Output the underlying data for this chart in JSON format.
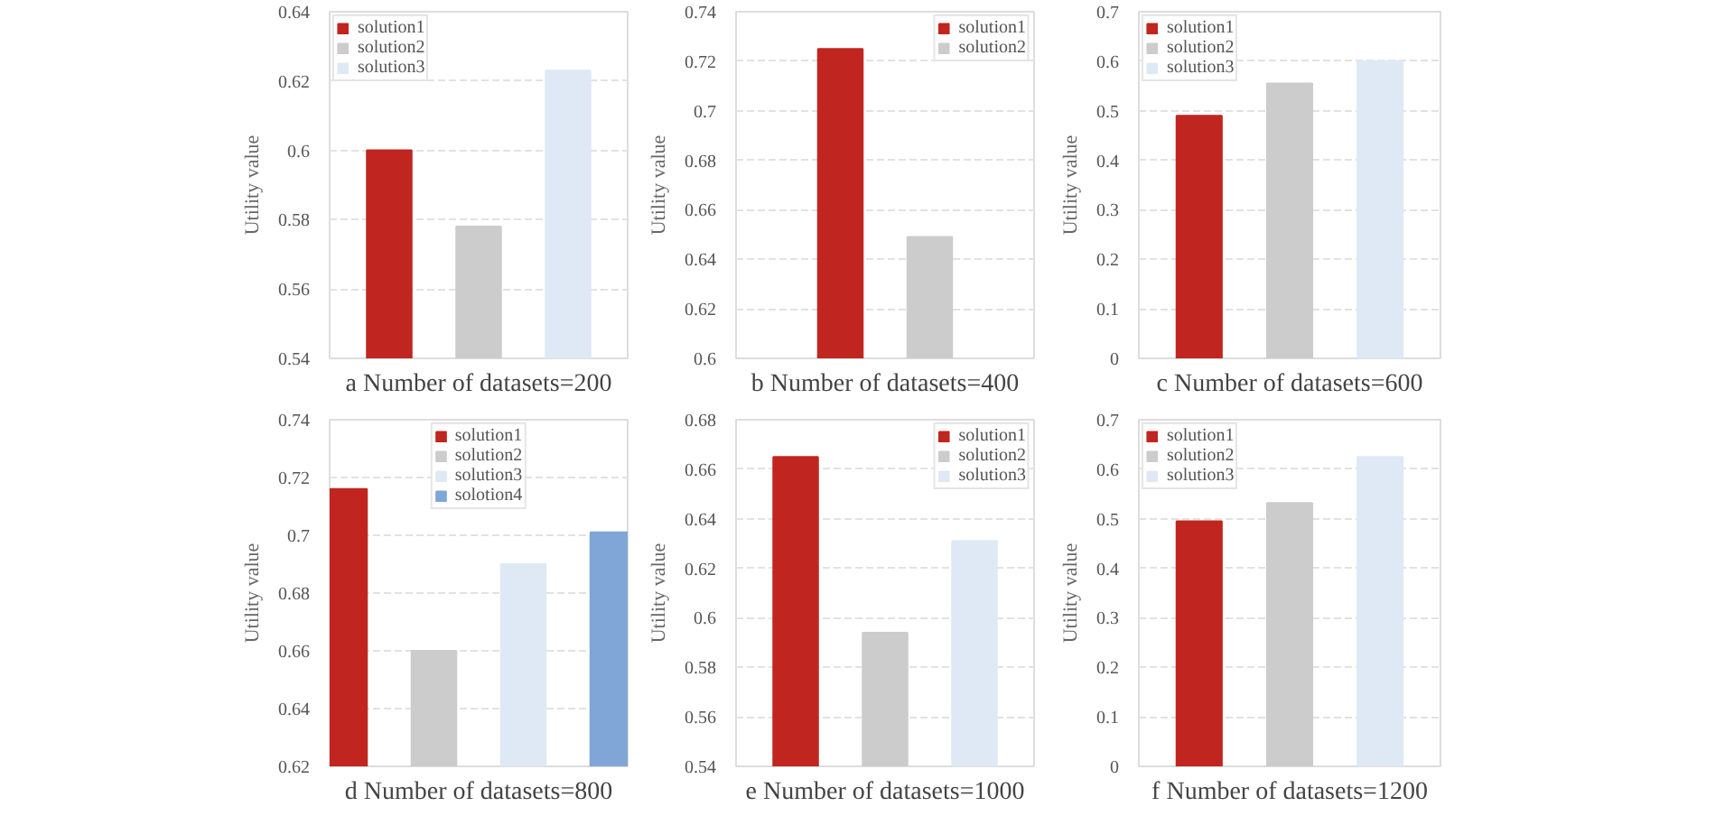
{
  "chart_data": [
    {
      "type": "bar",
      "title": "a Number of datasets=200",
      "ylabel": "Utility value",
      "categories": [
        null
      ],
      "ylim": [
        0.54,
        0.64
      ],
      "yticks": [
        0.54,
        0.56,
        0.58,
        0.6,
        0.62,
        0.64
      ],
      "grid": "y",
      "legend": "top left",
      "tick_labels": "y",
      "series": [
        {
          "name": "solution1",
          "color": "#c0261f",
          "values": [
            0.6
          ]
        },
        {
          "name": "solution2",
          "color": "#cccccc",
          "values": [
            0.578
          ]
        },
        {
          "name": "solution3",
          "color": "#dfe9f5",
          "values": [
            0.623
          ]
        }
      ]
    },
    {
      "type": "bar",
      "title": "b Number of datasets=400",
      "ylabel": "Utility value",
      "categories": [
        null
      ],
      "ylim": [
        0.6,
        0.74
      ],
      "yticks": [
        0.6,
        0.62,
        0.64,
        0.66,
        0.68,
        0.7,
        0.72,
        0.74
      ],
      "grid": "y",
      "legend": "top right",
      "tick_labels": "y",
      "series": [
        {
          "name": "solution1",
          "color": "#c0261f",
          "values": [
            0.725
          ]
        },
        {
          "name": "solution2",
          "color": "#cccccc",
          "values": [
            0.649
          ]
        }
      ]
    },
    {
      "type": "bar",
      "title": "c Number of datasets=600",
      "ylabel": "Utility value",
      "categories": [
        null
      ],
      "ylim": [
        0,
        0.7
      ],
      "yticks": [
        0,
        0.1,
        0.2,
        0.3,
        0.4,
        0.5,
        0.6,
        0.7
      ],
      "grid": "y",
      "legend": "top left",
      "tick_labels": "y",
      "series": [
        {
          "name": "solution1",
          "color": "#c0261f",
          "values": [
            0.49
          ]
        },
        {
          "name": "solution2",
          "color": "#cccccc",
          "values": [
            0.555
          ]
        },
        {
          "name": "solution3",
          "color": "#dfe9f5",
          "values": [
            0.6
          ]
        }
      ]
    },
    {
      "type": "bar",
      "title": "d Number of datasets=800",
      "ylabel": "Utility value",
      "categories": [
        null
      ],
      "ylim": [
        0.62,
        0.74
      ],
      "yticks": [
        0.62,
        0.64,
        0.66,
        0.68,
        0.7,
        0.72,
        0.74
      ],
      "grid": "y",
      "legend": "top center",
      "tick_labels": "y",
      "series": [
        {
          "name": "solution1",
          "color": "#c0261f",
          "values": [
            0.716
          ]
        },
        {
          "name": "solution2",
          "color": "#cccccc",
          "values": [
            0.66
          ]
        },
        {
          "name": "solution3",
          "color": "#dfe9f5",
          "values": [
            0.69
          ]
        },
        {
          "name": "solotion4",
          "color": "#7fa6d6",
          "values": [
            0.701
          ]
        }
      ]
    },
    {
      "type": "bar",
      "title": "e Number of datasets=1000",
      "ylabel": "Utility value",
      "categories": [
        null
      ],
      "ylim": [
        0.54,
        0.68
      ],
      "yticks": [
        0.54,
        0.56,
        0.58,
        0.6,
        0.62,
        0.64,
        0.66,
        0.68
      ],
      "grid": "y",
      "legend": "top right",
      "tick_labels": "y",
      "series": [
        {
          "name": "solution1",
          "color": "#c0261f",
          "values": [
            0.665
          ]
        },
        {
          "name": "solution2",
          "color": "#cccccc",
          "values": [
            0.594
          ]
        },
        {
          "name": "solution3",
          "color": "#dfe9f5",
          "values": [
            0.631
          ]
        }
      ]
    },
    {
      "type": "bar",
      "title": "f Number of datasets=1200",
      "ylabel": "Utility value",
      "categories": [
        null
      ],
      "ylim": [
        0,
        0.7
      ],
      "yticks": [
        0,
        0.1,
        0.2,
        0.3,
        0.4,
        0.5,
        0.6,
        0.7
      ],
      "grid": "y",
      "legend": "top left",
      "tick_labels": "y",
      "series": [
        {
          "name": "solution1",
          "color": "#c0261f",
          "values": [
            0.495
          ]
        },
        {
          "name": "solution2",
          "color": "#cccccc",
          "values": [
            0.532
          ]
        },
        {
          "name": "solution3",
          "color": "#dfe9f5",
          "values": [
            0.625
          ]
        }
      ]
    }
  ]
}
